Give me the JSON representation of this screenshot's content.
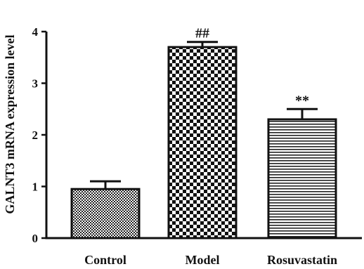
{
  "chart_data": {
    "type": "bar",
    "ylabel": "GALNT3 mRNA expression level",
    "xlabel": "",
    "ylim": [
      0,
      4
    ],
    "yticks": [
      0,
      1,
      2,
      3,
      4
    ],
    "grid": false,
    "categories": [
      "Control",
      "Model",
      "Rosuvastatin"
    ],
    "values": [
      0.95,
      3.7,
      2.3
    ],
    "errors": [
      0.15,
      0.1,
      0.2
    ],
    "annotations": [
      "",
      "##",
      "**"
    ],
    "fill_patterns": [
      "fine-crosshatch",
      "checkerboard",
      "horizontal-lines"
    ]
  }
}
